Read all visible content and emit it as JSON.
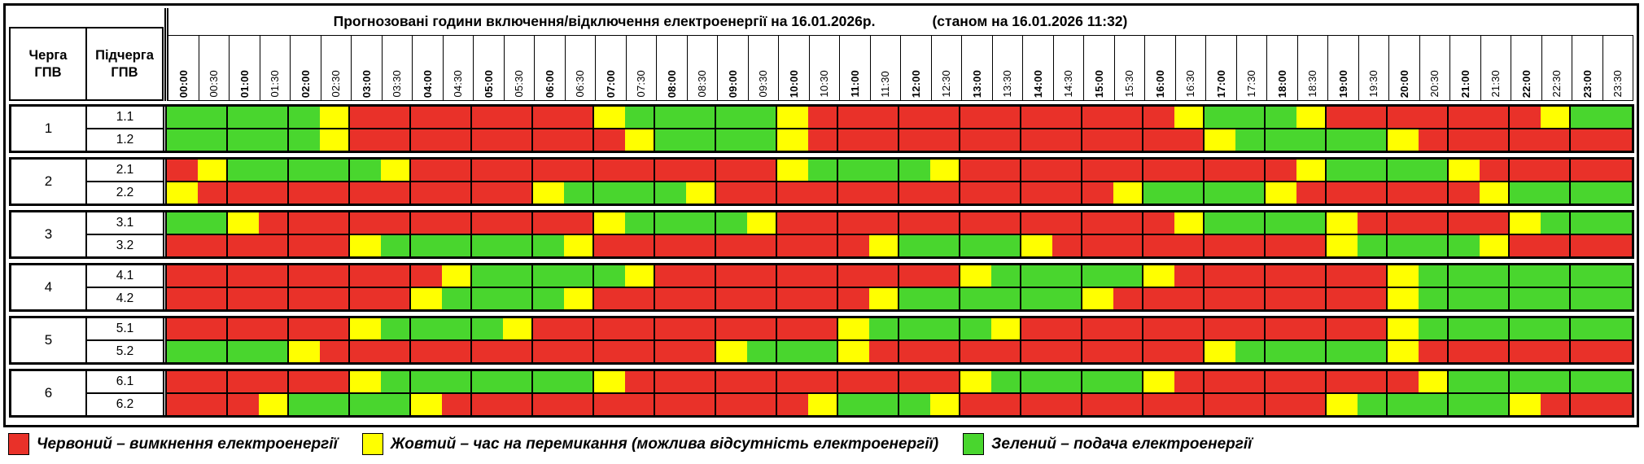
{
  "title": {
    "main": "Прогнозовані години включення/відключення електроенергії на 16.01.2026р.",
    "status": "(станом на 16.01.2026 11:32)"
  },
  "header": {
    "queue": "Черга\nГПВ",
    "subqueue": "Підчерга\nГПВ"
  },
  "times": [
    "00:00",
    "00:30",
    "01:00",
    "01:30",
    "02:00",
    "02:30",
    "03:00",
    "03:30",
    "04:00",
    "04:30",
    "05:00",
    "05:30",
    "06:00",
    "06:30",
    "07:00",
    "07:30",
    "08:00",
    "08:30",
    "09:00",
    "09:30",
    "10:00",
    "10:30",
    "11:00",
    "11:30",
    "12:00",
    "12:30",
    "13:00",
    "13:30",
    "14:00",
    "14:30",
    "15:00",
    "15:30",
    "16:00",
    "16:30",
    "17:00",
    "17:30",
    "18:00",
    "18:30",
    "19:00",
    "19:30",
    "20:00",
    "20:30",
    "21:00",
    "21:30",
    "22:00",
    "22:30",
    "23:00",
    "23:30"
  ],
  "colors": {
    "red": "#e93129",
    "yellow": "#ffff00",
    "green": "#49d62e"
  },
  "legend": [
    {
      "key": "red",
      "label": "Червоний – вимкнення електроенергії"
    },
    {
      "key": "yellow",
      "label": "Жовтий – час на перемикання (можлива відсутність електроенергії)"
    },
    {
      "key": "green",
      "label": "Зелений – подача електроенергії"
    }
  ],
  "chart_data": {
    "type": "heatmap",
    "title": "Прогнозовані години включення/відключення електроенергії на 16.01.2026р. (станом на 16.01.2026 11:32)",
    "x_labels": [
      "00:00",
      "00:30",
      "01:00",
      "01:30",
      "02:00",
      "02:30",
      "03:00",
      "03:30",
      "04:00",
      "04:30",
      "05:00",
      "05:30",
      "06:00",
      "06:30",
      "07:00",
      "07:30",
      "08:00",
      "08:30",
      "09:00",
      "09:30",
      "10:00",
      "10:30",
      "11:00",
      "11:30",
      "12:00",
      "12:30",
      "13:00",
      "13:30",
      "14:00",
      "14:30",
      "15:00",
      "15:30",
      "16:00",
      "16:30",
      "17:00",
      "17:30",
      "18:00",
      "18:30",
      "19:00",
      "19:30",
      "20:00",
      "20:30",
      "21:00",
      "21:30",
      "22:00",
      "22:30",
      "23:00",
      "23:30"
    ],
    "value_legend": {
      "R": "вимкнення електроенергії",
      "Y": "час на перемикання (можлива відсутність електроенергії)",
      "G": "подача електроенергії"
    },
    "rows": [
      {
        "queue": "1",
        "subqueue": "1.1",
        "cells": "GGGGGYRRRRRRRRYGGGGGYRRRRRRRRRRRRYGGGYRRRRRRRYGG"
      },
      {
        "queue": "1",
        "subqueue": "1.2",
        "cells": "GGGGGYRRRRRRRRRYGGGGYRRRRRRRRRRRRRYGGGGGYRRRRRRR"
      },
      {
        "queue": "2",
        "subqueue": "2.1",
        "cells": "RYGGGGGYRRRRRRRRRRRRYGGGGYRRRRRRRRRRRYGGGGYRRRRR"
      },
      {
        "queue": "2",
        "subqueue": "2.2",
        "cells": "YRRRRRRRRRRRYGGGGYRRRRRRRRRRRRRYGGGGYRRRRRRYGGGG"
      },
      {
        "queue": "3",
        "subqueue": "3.1",
        "cells": "GGYRRRRRRRRRRRYGGGGYRRRRRRRRRRRRRYGGGGYRRRRRYGGG"
      },
      {
        "queue": "3",
        "subqueue": "3.2",
        "cells": "RRRRRRYGGGGGGYRRRRRRRRRYGGGGYRRRRRRRRRYGGGGYRRRR"
      },
      {
        "queue": "4",
        "subqueue": "4.1",
        "cells": "RRRRRRRRRYGGGGGYRRRRRRRRRRYGGGGGYRRRRRRRYGGGGGGG"
      },
      {
        "queue": "4",
        "subqueue": "4.2",
        "cells": "RRRRRRRRYGGGGYRRRRRRRRRYGGGGGGYRRRRRRRRRYGGGGGGG"
      },
      {
        "queue": "5",
        "subqueue": "5.1",
        "cells": "RRRRRRYGGGGYRRRRRRRRRRYGGGGYRRRRRRRRRRRRYGGGGGGG"
      },
      {
        "queue": "5",
        "subqueue": "5.2",
        "cells": "GGGGYRRRRRRRRRRRRRYGGGYRRRRRRRRRRRYGGGGGYRRRRRRR"
      },
      {
        "queue": "6",
        "subqueue": "6.1",
        "cells": "RRRRRRYGGGGGGGYRRRRRRRRRRRYGGGGGYRRRRRRRRYGGGGGG"
      },
      {
        "queue": "6",
        "subqueue": "6.2",
        "cells": "RRRYGGGGYRRRRRRRRRRRRYGGGYRRRRRRRRRRRRYGGGGGYRRR"
      }
    ]
  }
}
